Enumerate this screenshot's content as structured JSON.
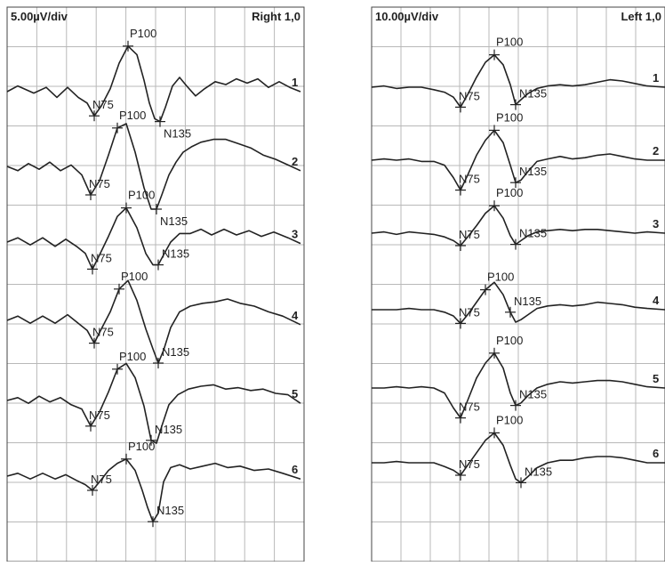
{
  "chart_data": [
    {
      "type": "line",
      "title": "",
      "scale_label": "5.00µV/div",
      "side_label": "Right 1,0",
      "xlabel": "",
      "ylabel": "",
      "grid": true,
      "line_color": "#222222",
      "grid_color": "#b8b8b8",
      "traces": [
        {
          "name": "1",
          "x": [
            0,
            12,
            30,
            44,
            56,
            68,
            80,
            90,
            98,
            106,
            116,
            126,
            136,
            146,
            154,
            160,
            166,
            172,
            178,
            186,
            194,
            202,
            212,
            222,
            234,
            246,
            258,
            270,
            282,
            294,
            306,
            318,
            330
          ],
          "y": [
            0,
            0.4,
            -0.1,
            0.3,
            -0.4,
            0.3,
            -0.4,
            -0.8,
            -1.7,
            -1.0,
            0.2,
            2.0,
            3.2,
            2.6,
            0.8,
            -0.8,
            -1.9,
            -2.1,
            -1.1,
            0.4,
            1.0,
            0.4,
            -0.3,
            0.2,
            0.7,
            0.5,
            0.9,
            0.6,
            0.9,
            0.3,
            0.7,
            0.3,
            0.0
          ],
          "marks": [
            {
              "label": "N75",
              "index": 8,
              "label_side": "above"
            },
            {
              "label": "P100",
              "index": 12,
              "label_side": "above"
            },
            {
              "label": "N135",
              "index": 17,
              "label_side": "below"
            }
          ]
        },
        {
          "name": "2",
          "x": [
            0,
            12,
            24,
            36,
            48,
            60,
            72,
            84,
            94,
            104,
            114,
            124,
            134,
            144,
            154,
            162,
            168,
            174,
            182,
            190,
            198,
            208,
            218,
            232,
            246,
            260,
            274,
            288,
            302,
            316,
            330
          ],
          "y": [
            0,
            -0.3,
            0.2,
            -0.2,
            0.3,
            -0.3,
            0.1,
            -0.6,
            -2.0,
            -1.0,
            0.8,
            2.7,
            3.0,
            1.0,
            -1.5,
            -3.0,
            -3.0,
            -2.0,
            -0.6,
            0.3,
            1.0,
            1.4,
            1.7,
            1.9,
            1.9,
            1.6,
            1.3,
            0.8,
            0.5,
            0.1,
            -0.3
          ],
          "marks": [
            {
              "label": "N75",
              "index": 8,
              "label_side": "above"
            },
            {
              "label": "P100",
              "index": 11,
              "label_side": "above"
            },
            {
              "label": "N135",
              "index": 16,
              "label_side": "below"
            }
          ]
        },
        {
          "name": "3",
          "x": [
            0,
            12,
            26,
            40,
            54,
            66,
            78,
            88,
            96,
            104,
            114,
            124,
            134,
            146,
            156,
            164,
            170,
            176,
            184,
            194,
            206,
            218,
            230,
            244,
            258,
            272,
            286,
            300,
            316,
            330
          ],
          "y": [
            0,
            0.3,
            -0.2,
            0.3,
            -0.3,
            0.2,
            -0.3,
            -0.8,
            -1.9,
            -0.9,
            0.4,
            1.8,
            2.4,
            1.0,
            -0.8,
            -1.6,
            -1.6,
            -0.9,
            0.0,
            0.6,
            0.6,
            0.9,
            0.5,
            0.9,
            0.5,
            0.8,
            0.4,
            0.7,
            0.3,
            -0.1
          ],
          "marks": [
            {
              "label": "N75",
              "index": 8,
              "label_side": "above"
            },
            {
              "label": "P100",
              "index": 12,
              "label_side": "above"
            },
            {
              "label": "N135",
              "index": 16,
              "label_side": "above"
            }
          ]
        },
        {
          "name": "4",
          "x": [
            0,
            12,
            26,
            40,
            54,
            68,
            80,
            90,
            98,
            106,
            116,
            126,
            136,
            146,
            156,
            164,
            170,
            176,
            184,
            194,
            206,
            220,
            234,
            248,
            262,
            278,
            294,
            310,
            330
          ],
          "y": [
            0,
            0.3,
            -0.2,
            0.3,
            -0.2,
            0.4,
            -0.2,
            -0.7,
            -1.6,
            -0.6,
            0.6,
            2.2,
            2.8,
            1.4,
            -0.6,
            -2.0,
            -3.0,
            -2.1,
            -0.5,
            0.6,
            1.0,
            1.2,
            1.3,
            1.5,
            1.2,
            1.0,
            0.6,
            0.3,
            -0.3
          ],
          "marks": [
            {
              "label": "N75",
              "index": 8,
              "label_side": "above"
            },
            {
              "label": "P100",
              "index": 11,
              "label_side": "above"
            },
            {
              "label": "N135",
              "index": 16,
              "label_side": "above"
            }
          ]
        },
        {
          "name": "5",
          "x": [
            0,
            12,
            24,
            36,
            48,
            60,
            72,
            84,
            94,
            104,
            114,
            124,
            134,
            144,
            154,
            162,
            168,
            174,
            182,
            192,
            204,
            218,
            232,
            246,
            260,
            274,
            288,
            302,
            316,
            330
          ],
          "y": [
            0,
            0.2,
            -0.2,
            0.3,
            -0.1,
            0.2,
            -0.3,
            -0.6,
            -1.8,
            -0.8,
            0.6,
            2.2,
            2.6,
            1.6,
            -0.4,
            -2.8,
            -3.0,
            -1.8,
            -0.3,
            0.4,
            0.8,
            1.0,
            1.1,
            0.8,
            0.9,
            0.7,
            0.8,
            0.5,
            0.4,
            -0.2
          ],
          "marks": [
            {
              "label": "N75",
              "index": 8,
              "label_side": "above"
            },
            {
              "label": "P100",
              "index": 11,
              "label_side": "above"
            },
            {
              "label": "N135",
              "index": 15,
              "label_side": "above"
            }
          ]
        },
        {
          "name": "6",
          "x": [
            0,
            12,
            26,
            40,
            54,
            66,
            78,
            88,
            96,
            104,
            114,
            124,
            134,
            144,
            152,
            158,
            164,
            170,
            176,
            184,
            194,
            206,
            220,
            234,
            248,
            262,
            278,
            294,
            310,
            330
          ],
          "y": [
            0,
            0.2,
            -0.2,
            0.2,
            -0.2,
            0.1,
            -0.3,
            -0.6,
            -1.0,
            -0.4,
            0.4,
            0.9,
            1.2,
            0.4,
            -1.0,
            -2.2,
            -3.2,
            -2.6,
            -0.4,
            0.6,
            0.8,
            0.5,
            0.7,
            0.9,
            0.6,
            0.7,
            0.4,
            0.5,
            0.2,
            -0.2
          ],
          "marks": [
            {
              "label": "N75",
              "index": 8,
              "label_side": "above"
            },
            {
              "label": "P100",
              "index": 12,
              "label_side": "above"
            },
            {
              "label": "N135",
              "index": 16,
              "label_side": "above"
            }
          ]
        }
      ]
    },
    {
      "type": "line",
      "title": "",
      "scale_label": "10.00µV/div",
      "side_label": "Left 1,0",
      "xlabel": "",
      "ylabel": "",
      "grid": true,
      "line_color": "#222222",
      "grid_color": "#b8b8b8",
      "traces": [
        {
          "name": "1",
          "x": [
            0,
            14,
            28,
            42,
            56,
            70,
            82,
            92,
            100,
            108,
            118,
            128,
            138,
            148,
            156,
            162,
            168,
            176,
            186,
            198,
            212,
            226,
            240,
            254,
            268,
            282,
            296,
            310,
            330
          ],
          "y": [
            0,
            0.1,
            -0.1,
            0.0,
            0.0,
            -0.2,
            -0.4,
            -0.8,
            -1.6,
            -0.6,
            0.8,
            2.0,
            2.6,
            1.8,
            0.2,
            -1.4,
            -1.0,
            -0.5,
            -0.1,
            0.1,
            0.2,
            0.1,
            0.2,
            0.4,
            0.6,
            0.5,
            0.3,
            0.1,
            0.0
          ],
          "marks": [
            {
              "label": "N75",
              "index": 8,
              "label_side": "above"
            },
            {
              "label": "P100",
              "index": 12,
              "label_side": "above"
            },
            {
              "label": "N135",
              "index": 15,
              "label_side": "above"
            }
          ]
        },
        {
          "name": "2",
          "x": [
            0,
            14,
            28,
            42,
            56,
            70,
            82,
            92,
            100,
            108,
            118,
            128,
            138,
            148,
            156,
            162,
            168,
            176,
            186,
            198,
            212,
            226,
            240,
            254,
            268,
            282,
            296,
            310,
            330
          ],
          "y": [
            0,
            0.1,
            0.0,
            0.1,
            -0.1,
            -0.1,
            -0.4,
            -1.4,
            -2.4,
            -1.2,
            0.4,
            1.6,
            2.4,
            1.4,
            -0.4,
            -1.8,
            -1.6,
            -0.9,
            -0.1,
            0.1,
            0.3,
            0.1,
            0.2,
            0.4,
            0.5,
            0.3,
            0.1,
            0.0,
            0.0
          ],
          "marks": [
            {
              "label": "N75",
              "index": 8,
              "label_side": "above"
            },
            {
              "label": "P100",
              "index": 12,
              "label_side": "above"
            },
            {
              "label": "N135",
              "index": 15,
              "label_side": "above"
            }
          ]
        },
        {
          "name": "3",
          "x": [
            0,
            14,
            28,
            42,
            56,
            70,
            82,
            92,
            100,
            108,
            118,
            128,
            138,
            148,
            156,
            162,
            168,
            176,
            186,
            198,
            212,
            226,
            240,
            254,
            268,
            282,
            296,
            310,
            330
          ],
          "y": [
            0,
            0.1,
            -0.1,
            0.1,
            0.0,
            -0.1,
            -0.3,
            -0.6,
            -1.0,
            -0.3,
            0.6,
            1.6,
            2.2,
            1.2,
            -0.2,
            -0.9,
            -0.6,
            -0.2,
            0.1,
            0.2,
            0.3,
            0.2,
            0.3,
            0.3,
            0.2,
            0.1,
            0.0,
            0.1,
            0.0
          ],
          "marks": [
            {
              "label": "N75",
              "index": 8,
              "label_side": "above"
            },
            {
              "label": "P100",
              "index": 12,
              "label_side": "above"
            },
            {
              "label": "N135",
              "index": 15,
              "label_side": "above"
            }
          ]
        },
        {
          "name": "4",
          "x": [
            0,
            14,
            28,
            42,
            56,
            70,
            82,
            92,
            100,
            108,
            118,
            128,
            138,
            148,
            156,
            162,
            168,
            176,
            186,
            198,
            212,
            226,
            240,
            254,
            268,
            282,
            296,
            310,
            330
          ],
          "y": [
            0,
            0.0,
            0.0,
            0.1,
            0.0,
            0.0,
            -0.2,
            -0.5,
            -1.1,
            -0.4,
            0.6,
            1.6,
            2.2,
            1.2,
            -0.2,
            -1.0,
            -0.8,
            -0.4,
            0.1,
            0.3,
            0.4,
            0.3,
            0.4,
            0.6,
            0.5,
            0.4,
            0.2,
            0.1,
            0.0
          ],
          "marks": [
            {
              "label": "N75",
              "index": 8,
              "label_side": "above"
            },
            {
              "label": "P100",
              "index": 11,
              "label_side": "above"
            },
            {
              "label": "N135",
              "index": 14,
              "label_side": "above"
            }
          ]
        },
        {
          "name": "5",
          "x": [
            0,
            14,
            28,
            42,
            56,
            70,
            82,
            92,
            100,
            108,
            118,
            128,
            138,
            148,
            156,
            162,
            168,
            176,
            186,
            198,
            212,
            226,
            240,
            254,
            268,
            282,
            296,
            310,
            330
          ],
          "y": [
            0,
            0.0,
            0.1,
            0.0,
            0.1,
            0.0,
            -0.4,
            -1.6,
            -2.4,
            -1.0,
            0.8,
            2.0,
            2.8,
            1.6,
            -0.4,
            -1.4,
            -1.2,
            -0.6,
            0.0,
            0.3,
            0.5,
            0.4,
            0.5,
            0.6,
            0.6,
            0.5,
            0.3,
            0.1,
            0.0
          ],
          "marks": [
            {
              "label": "N75",
              "index": 8,
              "label_side": "above"
            },
            {
              "label": "P100",
              "index": 12,
              "label_side": "above"
            },
            {
              "label": "N135",
              "index": 15,
              "label_side": "above"
            }
          ]
        },
        {
          "name": "6",
          "x": [
            0,
            14,
            28,
            42,
            56,
            70,
            82,
            92,
            100,
            108,
            118,
            128,
            138,
            148,
            156,
            162,
            168,
            176,
            186,
            198,
            212,
            226,
            240,
            254,
            268,
            282,
            296,
            310,
            330
          ],
          "y": [
            0,
            0.0,
            0.1,
            0.0,
            0.0,
            0.0,
            -0.3,
            -0.6,
            -1.0,
            -0.2,
            0.8,
            1.8,
            2.4,
            1.4,
            -0.2,
            -1.3,
            -1.6,
            -1.1,
            -0.4,
            0.0,
            0.2,
            0.2,
            0.4,
            0.5,
            0.5,
            0.4,
            0.2,
            0.0,
            0.0
          ],
          "marks": [
            {
              "label": "N75",
              "index": 8,
              "label_side": "above"
            },
            {
              "label": "P100",
              "index": 12,
              "label_side": "above"
            },
            {
              "label": "N135",
              "index": 16,
              "label_side": "above"
            }
          ]
        }
      ]
    }
  ]
}
